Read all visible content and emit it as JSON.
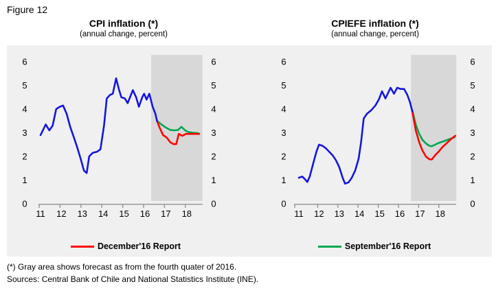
{
  "figure_label": "Figure 12",
  "colors": {
    "actual_line": "#1515dd",
    "december_line": "#ff0000",
    "september_line": "#00a64f",
    "forecast_band": "#d8d8d8",
    "panel_background": "#f0f0f0",
    "axis": "#999999"
  },
  "footnotes": {
    "asterisk": "(*) Gray area shows forecast as from the fourth quater of 2016.",
    "sources": "Sources: Central Bank of Chile and National Statistics Institute (INE)."
  },
  "chart_data": [
    {
      "type": "line",
      "title": "CPI inflation (*)",
      "subtitle": "(annual change, percent)",
      "xlabel": "",
      "ylabel": "",
      "ylim": [
        0,
        6
      ],
      "y_tick_labels": [
        "0",
        "1",
        "2",
        "3",
        "4",
        "5",
        "6"
      ],
      "x_tick_labels": [
        "11",
        "12",
        "13",
        "14",
        "15",
        "16",
        "17",
        "18"
      ],
      "grid": false,
      "forecast_band": {
        "start": 16.3,
        "end": 18.75
      },
      "legend": {
        "label": "December'16 Report",
        "color": "#ff0000",
        "position": "bottom-center"
      },
      "series": [
        {
          "name": "September'16 Report",
          "color": "#00a64f",
          "points": [
            [
              16.58,
              3.5
            ],
            [
              16.79,
              3.35
            ],
            [
              17.0,
              3.22
            ],
            [
              17.21,
              3.12
            ],
            [
              17.42,
              3.1
            ],
            [
              17.58,
              3.12
            ],
            [
              17.75,
              3.25
            ],
            [
              17.92,
              3.1
            ],
            [
              18.08,
              3.03
            ],
            [
              18.3,
              3.0
            ],
            [
              18.55,
              2.98
            ]
          ]
        },
        {
          "name": "December'16 Report",
          "color": "#ff0000",
          "points": [
            [
              16.58,
              3.5
            ],
            [
              16.71,
              3.2
            ],
            [
              16.87,
              2.9
            ],
            [
              17.04,
              2.8
            ],
            [
              17.21,
              2.6
            ],
            [
              17.37,
              2.52
            ],
            [
              17.5,
              2.52
            ],
            [
              17.62,
              2.95
            ],
            [
              17.79,
              2.87
            ],
            [
              17.96,
              2.95
            ],
            [
              18.25,
              2.95
            ],
            [
              18.6,
              2.95
            ]
          ]
        },
        {
          "name": "CPI inflation actual",
          "color": "#1515dd",
          "points": [
            [
              11.0,
              2.9
            ],
            [
              11.25,
              3.35
            ],
            [
              11.42,
              3.1
            ],
            [
              11.58,
              3.3
            ],
            [
              11.75,
              4.0
            ],
            [
              11.92,
              4.1
            ],
            [
              12.08,
              4.15
            ],
            [
              12.25,
              3.8
            ],
            [
              12.42,
              3.25
            ],
            [
              12.58,
              2.85
            ],
            [
              12.75,
              2.4
            ],
            [
              12.92,
              1.9
            ],
            [
              13.08,
              1.4
            ],
            [
              13.21,
              1.3
            ],
            [
              13.33,
              2.0
            ],
            [
              13.5,
              2.15
            ],
            [
              13.71,
              2.2
            ],
            [
              13.87,
              2.3
            ],
            [
              14.04,
              3.3
            ],
            [
              14.17,
              4.45
            ],
            [
              14.33,
              4.6
            ],
            [
              14.46,
              4.65
            ],
            [
              14.62,
              5.3
            ],
            [
              14.75,
              4.85
            ],
            [
              14.87,
              4.5
            ],
            [
              15.04,
              4.45
            ],
            [
              15.17,
              4.25
            ],
            [
              15.42,
              4.8
            ],
            [
              15.58,
              4.5
            ],
            [
              15.71,
              4.1
            ],
            [
              15.87,
              4.5
            ],
            [
              15.96,
              4.65
            ],
            [
              16.08,
              4.4
            ],
            [
              16.21,
              4.65
            ],
            [
              16.37,
              4.1
            ],
            [
              16.5,
              3.8
            ],
            [
              16.58,
              3.5
            ]
          ]
        }
      ]
    },
    {
      "type": "line",
      "title": "CPIEFE inflation (*)",
      "subtitle": "(annual change, percent)",
      "xlabel": "",
      "ylabel": "",
      "ylim": [
        0,
        6
      ],
      "y_tick_labels": [
        "0",
        "1",
        "2",
        "3",
        "4",
        "5",
        "6"
      ],
      "x_tick_labels": [
        "11",
        "12",
        "13",
        "14",
        "15",
        "16",
        "17",
        "18"
      ],
      "grid": false,
      "forecast_band": {
        "start": 16.55,
        "end": 18.8
      },
      "legend": {
        "label": "September'16 Report",
        "color": "#00a64f",
        "position": "bottom-center"
      },
      "series": [
        {
          "name": "September'16 Report",
          "color": "#00a64f",
          "points": [
            [
              16.62,
              3.95
            ],
            [
              16.79,
              3.35
            ],
            [
              16.96,
              2.95
            ],
            [
              17.12,
              2.7
            ],
            [
              17.29,
              2.55
            ],
            [
              17.46,
              2.45
            ],
            [
              17.58,
              2.43
            ],
            [
              17.75,
              2.5
            ],
            [
              17.96,
              2.58
            ],
            [
              18.2,
              2.65
            ],
            [
              18.45,
              2.73
            ],
            [
              18.7,
              2.8
            ]
          ]
        },
        {
          "name": "December'16 Report",
          "color": "#ff0000",
          "points": [
            [
              16.62,
              3.9
            ],
            [
              16.79,
              3.1
            ],
            [
              16.96,
              2.6
            ],
            [
              17.12,
              2.25
            ],
            [
              17.29,
              2.0
            ],
            [
              17.46,
              1.88
            ],
            [
              17.58,
              1.87
            ],
            [
              17.75,
              2.05
            ],
            [
              17.92,
              2.2
            ],
            [
              18.12,
              2.4
            ],
            [
              18.37,
              2.6
            ],
            [
              18.6,
              2.78
            ],
            [
              18.75,
              2.87
            ]
          ]
        },
        {
          "name": "CPIEFE inflation actual",
          "color": "#1515dd",
          "points": [
            [
              11.0,
              1.1
            ],
            [
              11.17,
              1.15
            ],
            [
              11.29,
              1.05
            ],
            [
              11.42,
              0.92
            ],
            [
              11.54,
              1.15
            ],
            [
              11.71,
              1.7
            ],
            [
              11.87,
              2.2
            ],
            [
              12.0,
              2.5
            ],
            [
              12.17,
              2.45
            ],
            [
              12.33,
              2.35
            ],
            [
              12.5,
              2.2
            ],
            [
              12.67,
              2.05
            ],
            [
              12.83,
              1.85
            ],
            [
              13.0,
              1.55
            ],
            [
              13.17,
              1.1
            ],
            [
              13.29,
              0.85
            ],
            [
              13.46,
              0.9
            ],
            [
              13.62,
              1.1
            ],
            [
              13.79,
              1.4
            ],
            [
              13.96,
              1.9
            ],
            [
              14.08,
              2.6
            ],
            [
              14.21,
              3.6
            ],
            [
              14.37,
              3.8
            ],
            [
              14.58,
              3.95
            ],
            [
              14.79,
              4.15
            ],
            [
              14.96,
              4.4
            ],
            [
              15.12,
              4.75
            ],
            [
              15.29,
              4.45
            ],
            [
              15.54,
              4.9
            ],
            [
              15.71,
              4.65
            ],
            [
              15.87,
              4.9
            ],
            [
              16.04,
              4.85
            ],
            [
              16.21,
              4.85
            ],
            [
              16.37,
              4.6
            ],
            [
              16.5,
              4.3
            ],
            [
              16.62,
              3.9
            ]
          ]
        }
      ]
    }
  ]
}
